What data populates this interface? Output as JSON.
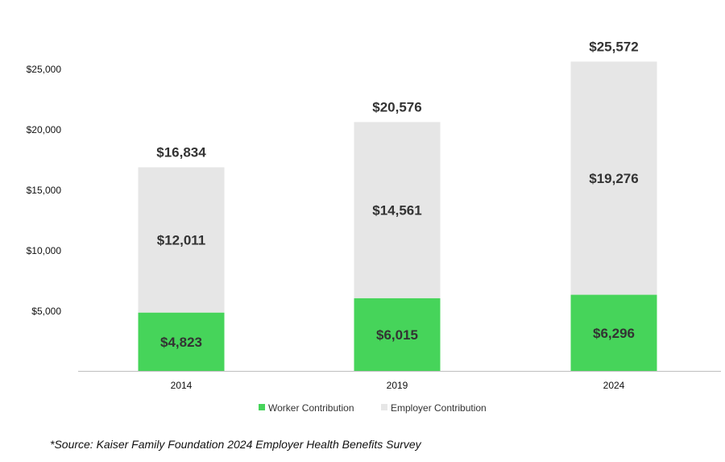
{
  "chart_data": {
    "type": "bar",
    "stacked": true,
    "categories": [
      "2014",
      "2019",
      "2024"
    ],
    "series": [
      {
        "name": "Worker Contribution",
        "values": [
          4823,
          6015,
          6296
        ],
        "color": "#46d45a",
        "labels": [
          "$4,823",
          "$6,015",
          "$6,296"
        ]
      },
      {
        "name": "Employer Contribution",
        "values": [
          12011,
          14561,
          19276
        ],
        "color": "#e6e6e6",
        "labels": [
          "$12,011",
          "$14,561",
          "$19,276"
        ]
      }
    ],
    "totals": [
      16834,
      20576,
      25572
    ],
    "total_labels": [
      "$16,834",
      "$20,576",
      "$25,572"
    ],
    "ylim": [
      0,
      25000
    ],
    "yticks": [
      5000,
      10000,
      15000,
      20000,
      25000
    ],
    "ytick_labels": [
      "$5,000",
      "$10,000",
      "$15,000",
      "$20,000",
      "$25,000"
    ],
    "grid": false,
    "legend_position": "bottom",
    "title": "",
    "xlabel": "",
    "ylabel": ""
  },
  "source_note": "*Source: Kaiser Family Foundation 2024 Employer Health Benefits Survey"
}
